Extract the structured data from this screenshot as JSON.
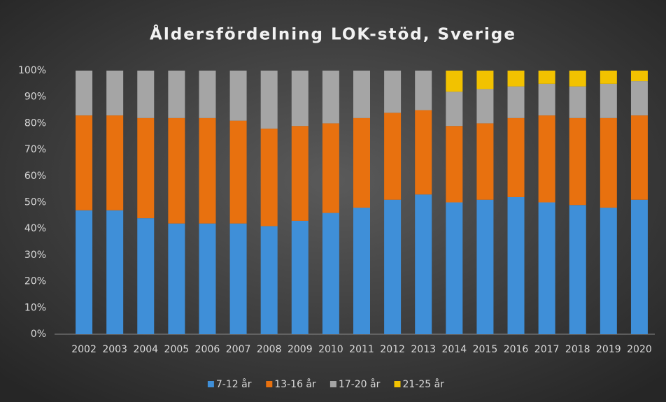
{
  "chart_data": {
    "type": "stacked_bar",
    "title": "Åldersfördelning LOK-stöd, Sverige",
    "categories": [
      "2002",
      "2003",
      "2004",
      "2005",
      "2006",
      "2007",
      "2008",
      "2009",
      "2010",
      "2011",
      "2012",
      "2013",
      "2014",
      "2015",
      "2016",
      "2017",
      "2018",
      "2019",
      "2020"
    ],
    "series": [
      {
        "name": "7-12 år",
        "color": "#3f8fd8",
        "values": [
          47,
          47,
          44,
          42,
          42,
          42,
          41,
          43,
          46,
          48,
          51,
          53,
          50,
          51,
          52,
          50,
          49,
          48,
          51
        ]
      },
      {
        "name": "13-16 år",
        "color": "#e8710f",
        "values": [
          36,
          36,
          38,
          40,
          40,
          39,
          37,
          36,
          34,
          34,
          33,
          32,
          29,
          29,
          30,
          33,
          33,
          34,
          32
        ]
      },
      {
        "name": "17-20 år",
        "color": "#a5a5a5",
        "values": [
          17,
          17,
          18,
          18,
          18,
          19,
          22,
          21,
          20,
          18,
          16,
          15,
          13,
          13,
          12,
          12,
          12,
          13,
          13
        ]
      },
      {
        "name": "21-25 år",
        "color": "#f2c200",
        "values": [
          0,
          0,
          0,
          0,
          0,
          0,
          0,
          0,
          0,
          0,
          0,
          0,
          8,
          7,
          6,
          5,
          6,
          5,
          4
        ]
      }
    ],
    "ylim": [
      0,
      100
    ],
    "yticks": [
      {
        "value": 0,
        "label": "0%"
      },
      {
        "value": 10,
        "label": "10%"
      },
      {
        "value": 20,
        "label": "20%"
      },
      {
        "value": 30,
        "label": "30%"
      },
      {
        "value": 40,
        "label": "40%"
      },
      {
        "value": 50,
        "label": "50%"
      },
      {
        "value": 60,
        "label": "60%"
      },
      {
        "value": 70,
        "label": "70%"
      },
      {
        "value": 80,
        "label": "80%"
      },
      {
        "value": 90,
        "label": "90%"
      },
      {
        "value": 100,
        "label": "100%"
      }
    ],
    "grid": false,
    "legend": "bottom"
  }
}
